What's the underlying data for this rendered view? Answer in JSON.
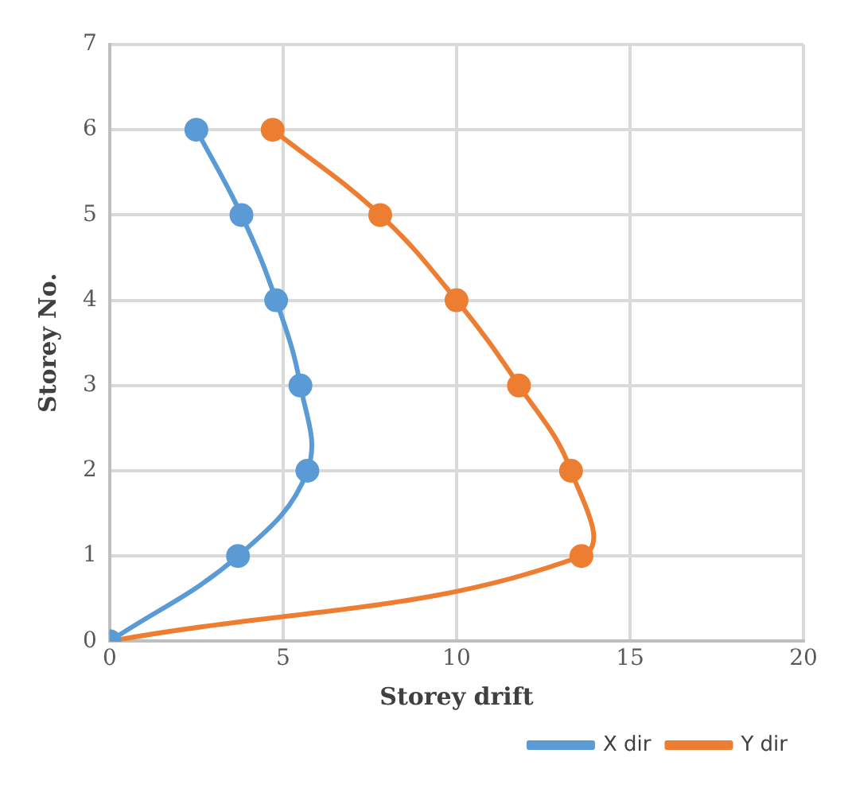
{
  "chart_data": {
    "type": "line",
    "xlabel": "Storey drift",
    "ylabel": "Storey No.",
    "xlim": [
      0,
      20
    ],
    "xticks": [
      0,
      5,
      10,
      15,
      20
    ],
    "ylim": [
      0,
      7
    ],
    "yticks": [
      0,
      1,
      2,
      3,
      4,
      5,
      6,
      7
    ],
    "grid": true,
    "legend": "bottom right",
    "marker": "circle",
    "line_style": "solid",
    "series": [
      {
        "name": "X dir",
        "color": "#5b9bd5",
        "x": [
          0,
          3.7,
          5.7,
          5.5,
          4.8,
          3.8,
          2.5
        ],
        "values": [
          0,
          1,
          2,
          3,
          4,
          5,
          6
        ]
      },
      {
        "name": "Y dir",
        "color": "#ed7d31",
        "x": [
          0,
          13.6,
          13.3,
          11.8,
          10.0,
          7.8,
          4.7
        ],
        "values": [
          0,
          1,
          2,
          3,
          4,
          5,
          6
        ]
      }
    ]
  }
}
